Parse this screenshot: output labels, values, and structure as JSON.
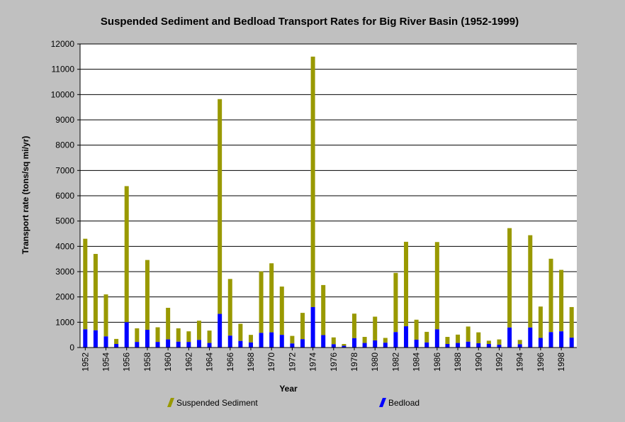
{
  "chart_data": {
    "type": "bar",
    "stacked": true,
    "title": "Suspended Sediment and Bedload Transport Rates for Big River Basin (1952-1999)",
    "xlabel": "Year",
    "ylabel": "Transport rate (tons/sq mi/yr)",
    "ylim": [
      0,
      12000
    ],
    "ytick_step": 1000,
    "yticks": [
      "0",
      "1000",
      "2000",
      "3000",
      "4000",
      "5000",
      "6000",
      "7000",
      "8000",
      "9000",
      "10000",
      "11000",
      "12000"
    ],
    "grid": true,
    "legend_position": "bottom",
    "categories": [
      "1952",
      "1953",
      "1954",
      "1955",
      "1956",
      "1957",
      "1958",
      "1959",
      "1960",
      "1961",
      "1962",
      "1963",
      "1964",
      "1965",
      "1966",
      "1967",
      "1968",
      "1969",
      "1970",
      "1971",
      "1972",
      "1973",
      "1974",
      "1975",
      "1976",
      "1977",
      "1978",
      "1979",
      "1980",
      "1981",
      "1982",
      "1983",
      "1984",
      "1985",
      "1986",
      "1987",
      "1988",
      "1989",
      "1990",
      "1991",
      "1992",
      "1993",
      "1994",
      "1995",
      "1996",
      "1997",
      "1998",
      "1999"
    ],
    "xtick_labels": [
      "1952",
      "1954",
      "1956",
      "1958",
      "1960",
      "1962",
      "1964",
      "1966",
      "1968",
      "1970",
      "1972",
      "1974",
      "1976",
      "1978",
      "1980",
      "1982",
      "1984",
      "1986",
      "1988",
      "1990",
      "1992",
      "1994",
      "1996",
      "1998"
    ],
    "series": [
      {
        "name": "Bedload",
        "color": "#0000ff",
        "values": [
          720,
          680,
          440,
          140,
          1000,
          220,
          700,
          220,
          320,
          230,
          220,
          300,
          180,
          1330,
          470,
          260,
          200,
          580,
          600,
          500,
          160,
          330,
          1600,
          490,
          130,
          70,
          370,
          180,
          280,
          190,
          610,
          840,
          310,
          200,
          720,
          140,
          180,
          230,
          170,
          140,
          110,
          790,
          130,
          790,
          380,
          610,
          640,
          390
        ]
      },
      {
        "name": "Suspended Sediment",
        "color": "#999900",
        "values": [
          3580,
          3020,
          1660,
          200,
          5380,
          540,
          2760,
          580,
          1250,
          530,
          420,
          760,
          490,
          8490,
          2240,
          680,
          300,
          2430,
          2730,
          1910,
          300,
          1040,
          9900,
          1980,
          270,
          70,
          970,
          240,
          940,
          190,
          2340,
          3340,
          790,
          420,
          3450,
          280,
          330,
          600,
          430,
          130,
          210,
          3930,
          170,
          3650,
          1240,
          2900,
          2430,
          1210
        ]
      }
    ]
  }
}
